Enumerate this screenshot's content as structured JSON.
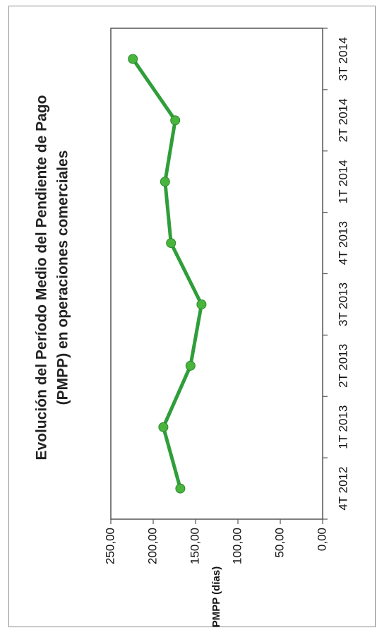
{
  "chart_data": {
    "type": "line",
    "title_lines": [
      "Evolución del Período Medio del Pendiente de Pago",
      "(PMPP) en operaciones comerciales"
    ],
    "ylabel": "PMPP (días)",
    "xlabel": "",
    "categories": [
      "4T 2012",
      "1T 2013",
      "2T 2013",
      "3T 2013",
      "4T 2013",
      "1T 2014",
      "2T 2014",
      "3T 2014"
    ],
    "series": [
      {
        "values": [
          168,
          188,
          156,
          143,
          179,
          186,
          174,
          224
        ]
      }
    ],
    "ylim": [
      0,
      250
    ],
    "yticks": [
      "0,00",
      "50,00",
      "100,00",
      "150,00",
      "200,00",
      "250,00"
    ],
    "ytick_values": [
      0,
      50,
      100,
      150,
      200,
      250
    ],
    "grid": false,
    "legend": false,
    "orientation": "rotated-90-clockwise",
    "colors": {
      "line": "#2f9e3a",
      "marker": "#49b53c",
      "frame": "#555555",
      "text": "#111111"
    }
  }
}
